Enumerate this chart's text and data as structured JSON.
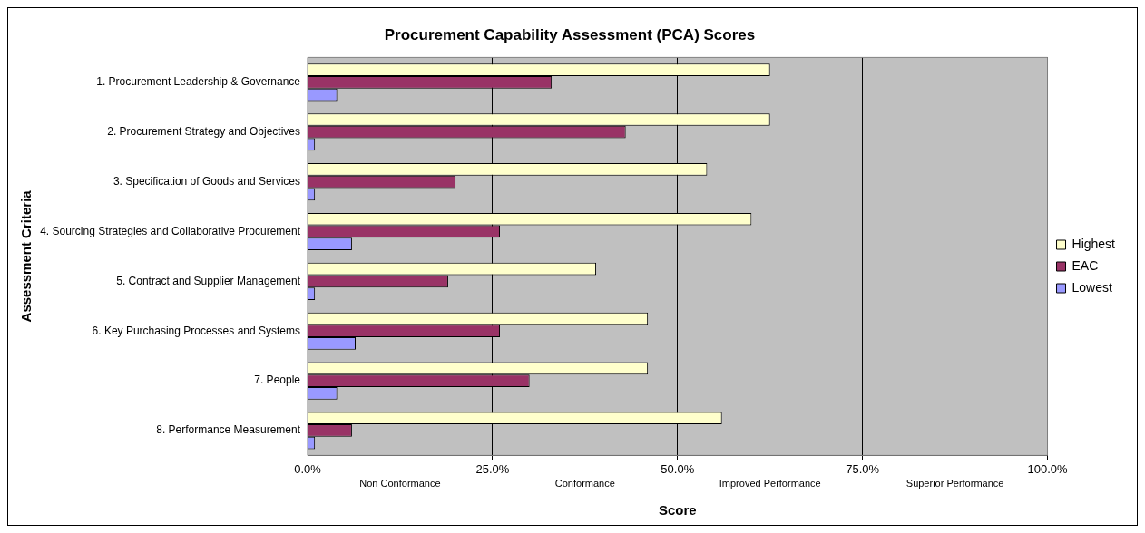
{
  "chart_data": {
    "type": "bar",
    "orientation": "horizontal",
    "title": "Procurement Capability Assessment (PCA) Scores",
    "xlabel": "Score",
    "ylabel": "Assessment Criteria",
    "categories": [
      "1. Procurement Leadership & Governance",
      "2. Procurement Strategy and Objectives",
      "3. Specification of Goods and Services",
      "4. Sourcing Strategies and Collaborative Procurement",
      "5. Contract and Supplier Management",
      "6. Key Purchasing Processes and Systems",
      "7. People",
      "8. Performance Measurement"
    ],
    "series": [
      {
        "name": "Highest",
        "color": "#ffffcc",
        "values": [
          62.5,
          62.5,
          54,
          60,
          39,
          46,
          46,
          56
        ]
      },
      {
        "name": "EAC",
        "color": "#993366",
        "values": [
          33,
          43,
          20,
          26,
          19,
          26,
          30,
          6
        ]
      },
      {
        "name": "Lowest",
        "color": "#9999ff",
        "values": [
          4,
          1,
          1,
          6,
          1,
          6.5,
          4,
          1
        ]
      }
    ],
    "xlim": [
      0,
      100
    ],
    "xticks": [
      {
        "value": 0,
        "label": "0.0%"
      },
      {
        "value": 25,
        "label": "25.0%"
      },
      {
        "value": 50,
        "label": "50.0%"
      },
      {
        "value": 75,
        "label": "75.0%"
      },
      {
        "value": 100,
        "label": "100.0%"
      }
    ],
    "annotations": [
      "Non Conformance",
      "Conformance",
      "Improved Performance",
      "Superior Performance"
    ],
    "grid": "x",
    "legend": "right"
  }
}
